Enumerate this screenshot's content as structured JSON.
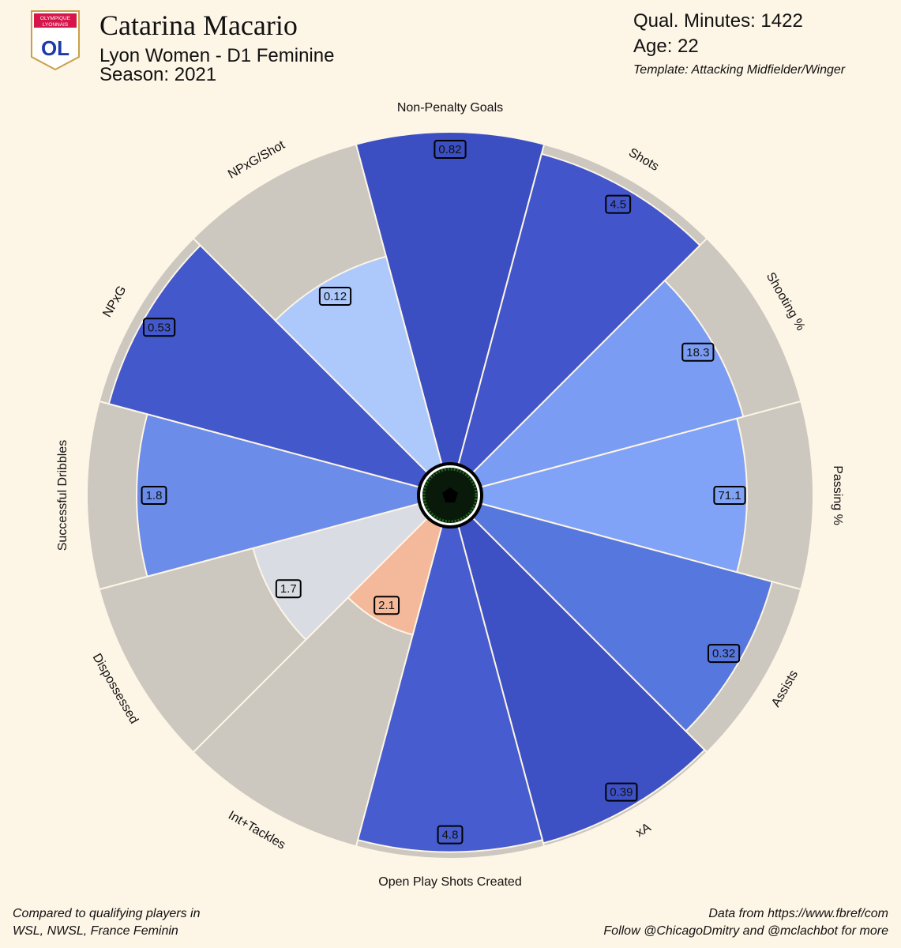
{
  "chart_data": {
    "type": "pizza",
    "title": "Catarina Macario",
    "subtitle": "Lyon Women - D1 Feminine",
    "season": "Season: 2021",
    "info": [
      "Qual. Minutes: 1422",
      "Age: 22"
    ],
    "template": "Template: Attacking Midfielder/Winger",
    "logo": {
      "line1": "OLYMPIQUE",
      "line2": "LYONNAIS",
      "mark": "OL"
    },
    "footer_left": [
      "Compared to qualifying players in",
      "WSL, NWSL, France Feminin"
    ],
    "footer_right": [
      "Data from https://www.fbref/com",
      "Follow @ChicagoDmitry and @mclachbot for more"
    ],
    "categories": [
      "Non-Penalty Goals",
      "Shots",
      "Shooting %",
      "Passing %",
      "Assists",
      "xA",
      "Open Play Shots Created",
      "Int+Tackles",
      "Dispossessed",
      "Successful Dribbles",
      "NPxG",
      "NPxG/Shot"
    ],
    "values": [
      0.82,
      4.5,
      18.3,
      71.1,
      0.32,
      0.39,
      4.8,
      2.1,
      1.7,
      1.8,
      0.53,
      0.12
    ],
    "percentiles": [
      100,
      97,
      82,
      80,
      91,
      99,
      98,
      34,
      52,
      85,
      97,
      65
    ],
    "colors": [
      "#3b4fc2",
      "#4255cb",
      "#7a9cf2",
      "#80a3f7",
      "#5677dd",
      "#3e51c4",
      "#465ccf",
      "#f4b89a",
      "#d9dce3",
      "#6b8ce9",
      "#4358cb",
      "#adc8fb"
    ],
    "ring_color": "#ccc7bf"
  }
}
